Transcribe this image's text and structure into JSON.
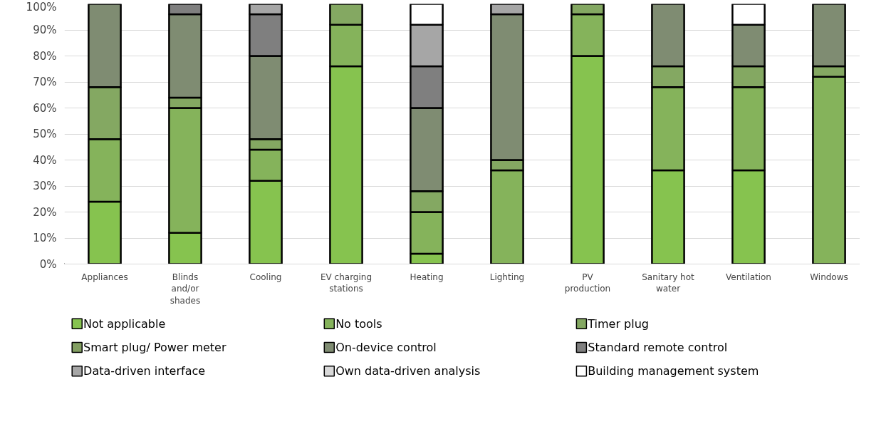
{
  "chart_data": {
    "type": "bar",
    "stacked": true,
    "categories": [
      "Appliances",
      "Blinds and/or shades",
      "Cooling",
      "EV charging stations",
      "Heating",
      "Lighting",
      "PV production",
      "Sanitary hot water",
      "Ventilation",
      "Windows"
    ],
    "series": [
      {
        "name": "Not applicable",
        "color": "#86c34f",
        "values": [
          24,
          12,
          32,
          76,
          4,
          0,
          80,
          36,
          36,
          0
        ]
      },
      {
        "name": "No tools",
        "color": "#85b35b",
        "values": [
          24,
          48,
          12,
          16,
          16,
          36,
          16,
          32,
          32,
          72
        ]
      },
      {
        "name": "Timer plug",
        "color": "#84a862",
        "values": [
          20,
          4,
          4,
          8,
          8,
          4,
          4,
          8,
          8,
          4
        ]
      },
      {
        "name": "Smart plug/ Power meter",
        "color": "#839f62",
        "values": [
          0,
          0,
          0,
          0,
          0,
          0,
          0,
          0,
          0,
          0
        ]
      },
      {
        "name": "On-device control",
        "color": "#7f8c72",
        "values": [
          32,
          32,
          32,
          0,
          32,
          56,
          0,
          24,
          16,
          24
        ]
      },
      {
        "name": "Standard remote control",
        "color": "#7f7f7f",
        "values": [
          0,
          4,
          16,
          0,
          16,
          0,
          0,
          0,
          0,
          0
        ]
      },
      {
        "name": "Data-driven interface",
        "color": "#a6a6a6",
        "values": [
          0,
          0,
          4,
          0,
          16,
          4,
          0,
          0,
          0,
          0
        ]
      },
      {
        "name": "Own data-driven analysis",
        "color": "#d9d9d9",
        "values": [
          0,
          0,
          0,
          0,
          0,
          0,
          0,
          0,
          0,
          0
        ]
      },
      {
        "name": "Building management system",
        "color": "#ffffff",
        "values": [
          0,
          0,
          0,
          0,
          8,
          0,
          0,
          0,
          8,
          0
        ]
      }
    ],
    "ylim": [
      0,
      100
    ],
    "yticks": [
      {
        "value": 0,
        "label": "0%"
      },
      {
        "value": 10,
        "label": "10%"
      },
      {
        "value": 20,
        "label": "20%"
      },
      {
        "value": 30,
        "label": "30%"
      },
      {
        "value": 40,
        "label": "40%"
      },
      {
        "value": 50,
        "label": "50%"
      },
      {
        "value": 60,
        "label": "60%"
      },
      {
        "value": 70,
        "label": "70%"
      },
      {
        "value": 80,
        "label": "80%"
      },
      {
        "value": 90,
        "label": "90%"
      },
      {
        "value": 100,
        "label": "100%"
      }
    ],
    "grid": "y",
    "legend": "bottom"
  }
}
